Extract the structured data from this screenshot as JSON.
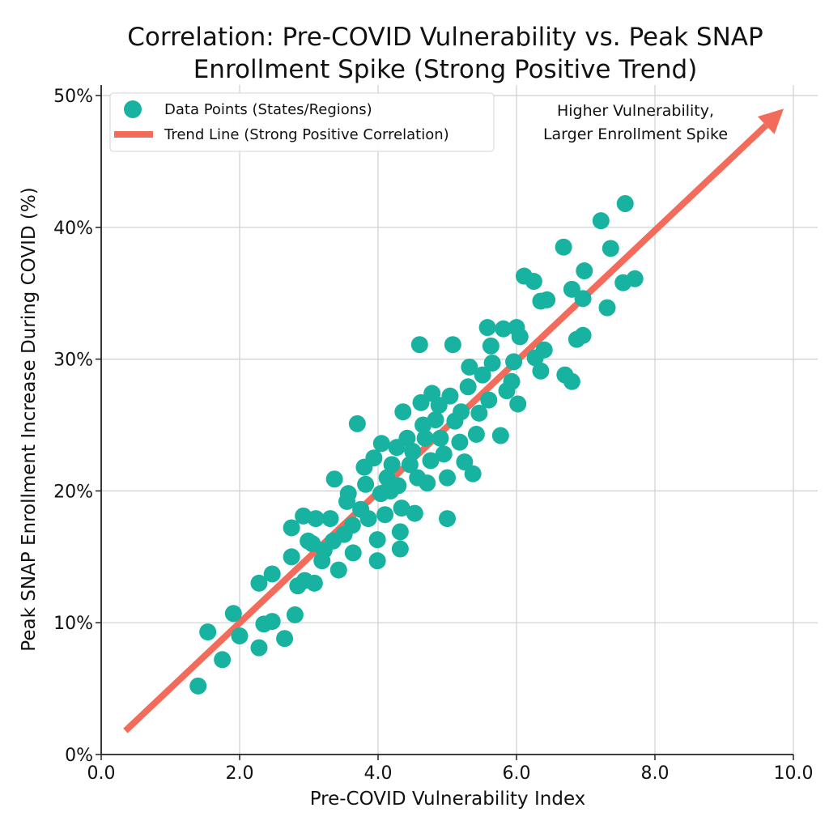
{
  "chart_data": {
    "type": "scatter",
    "title": "Correlation: Pre-COVID Vulnerability vs. Peak SNAP Enrollment Spike (Strong Positive Trend)",
    "title_lines": [
      "Correlation: Pre-COVID Vulnerability vs. Peak SNAP",
      "Enrollment Spike (Strong Positive Trend)"
    ],
    "xlabel": "Pre-COVID Vulnerability Index",
    "ylabel": "Peak SNAP Enrollment Increase During COVID (%)",
    "xlim": [
      0,
      10
    ],
    "ylim": [
      0,
      50
    ],
    "xticks": [
      0,
      2,
      4,
      6,
      8,
      10
    ],
    "xtick_labels": [
      "0.0",
      "2.0",
      "4.0",
      "6.0",
      "8.0",
      "10.0"
    ],
    "yticks": [
      0,
      10,
      20,
      30,
      40,
      50
    ],
    "ytick_labels": [
      "0%",
      "10%",
      "20%",
      "30%",
      "40%",
      "50%"
    ],
    "grid": true,
    "legend_position": "top-left",
    "legend": [
      {
        "label": "Data Points (States/Regions)",
        "kind": "marker",
        "color": "#17b3a0"
      },
      {
        "label": "Trend Line (Strong Positive Correlation)",
        "kind": "line",
        "color": "#f26b5b"
      }
    ],
    "annotation_lines": [
      "Higher Vulnerability,",
      "Larger Enrollment Spike"
    ],
    "series": [
      {
        "name": "Data Points (States/Regions)",
        "color": "#17b3a0",
        "points": [
          [
            1.4,
            5.2
          ],
          [
            1.54,
            9.3
          ],
          [
            1.75,
            7.2
          ],
          [
            1.91,
            10.7
          ],
          [
            2.0,
            9.0
          ],
          [
            2.28,
            8.1
          ],
          [
            2.35,
            9.9
          ],
          [
            2.47,
            10.1
          ],
          [
            2.28,
            13.0
          ],
          [
            2.47,
            13.7
          ],
          [
            2.65,
            8.8
          ],
          [
            2.8,
            10.6
          ],
          [
            2.75,
            17.2
          ],
          [
            2.75,
            15.0
          ],
          [
            2.84,
            12.8
          ],
          [
            2.92,
            18.1
          ],
          [
            2.99,
            16.2
          ],
          [
            2.94,
            13.2
          ],
          [
            3.1,
            17.9
          ],
          [
            3.08,
            13.0
          ],
          [
            3.19,
            14.7
          ],
          [
            3.31,
            17.9
          ],
          [
            3.37,
            20.9
          ],
          [
            3.43,
            14.0
          ],
          [
            3.22,
            15.5
          ],
          [
            3.51,
            16.7
          ],
          [
            3.57,
            19.8
          ],
          [
            3.63,
            17.4
          ],
          [
            3.64,
            15.3
          ],
          [
            3.7,
            25.1
          ],
          [
            3.8,
            21.8
          ],
          [
            3.82,
            20.5
          ],
          [
            3.86,
            17.9
          ],
          [
            3.94,
            22.5
          ],
          [
            3.99,
            14.7
          ],
          [
            3.99,
            16.3
          ],
          [
            4.05,
            23.6
          ],
          [
            4.04,
            19.8
          ],
          [
            4.13,
            21.0
          ],
          [
            4.2,
            22.0
          ],
          [
            4.27,
            23.3
          ],
          [
            4.29,
            20.4
          ],
          [
            4.32,
            16.9
          ],
          [
            4.32,
            15.6
          ],
          [
            4.34,
            18.7
          ],
          [
            4.36,
            26.0
          ],
          [
            4.42,
            24.0
          ],
          [
            4.46,
            22.0
          ],
          [
            4.53,
            18.3
          ],
          [
            4.57,
            21.0
          ],
          [
            4.6,
            31.1
          ],
          [
            4.62,
            26.7
          ],
          [
            4.68,
            24.0
          ],
          [
            4.71,
            20.6
          ],
          [
            4.76,
            22.3
          ],
          [
            4.78,
            27.4
          ],
          [
            4.83,
            25.4
          ],
          [
            4.88,
            26.5
          ],
          [
            4.95,
            22.8
          ],
          [
            5.0,
            17.9
          ],
          [
            5.0,
            21.0
          ],
          [
            5.04,
            27.2
          ],
          [
            5.08,
            31.1
          ],
          [
            5.11,
            25.3
          ],
          [
            5.18,
            23.7
          ],
          [
            5.25,
            22.2
          ],
          [
            5.3,
            27.9
          ],
          [
            5.32,
            29.4
          ],
          [
            5.37,
            21.3
          ],
          [
            5.42,
            24.3
          ],
          [
            5.46,
            25.9
          ],
          [
            5.51,
            28.8
          ],
          [
            5.58,
            32.4
          ],
          [
            5.63,
            31.0
          ],
          [
            5.6,
            26.9
          ],
          [
            5.65,
            29.7
          ],
          [
            5.77,
            24.2
          ],
          [
            5.81,
            32.3
          ],
          [
            5.86,
            27.6
          ],
          [
            5.93,
            28.3
          ],
          [
            6.0,
            32.4
          ],
          [
            6.05,
            31.7
          ],
          [
            6.02,
            26.6
          ],
          [
            5.96,
            29.8
          ],
          [
            6.11,
            36.3
          ],
          [
            6.25,
            35.9
          ],
          [
            6.27,
            30.1
          ],
          [
            6.35,
            29.1
          ],
          [
            6.35,
            34.4
          ],
          [
            6.44,
            34.5
          ],
          [
            6.4,
            30.7
          ],
          [
            6.68,
            38.5
          ],
          [
            6.7,
            28.8
          ],
          [
            6.8,
            28.3
          ],
          [
            6.8,
            35.3
          ],
          [
            6.87,
            31.5
          ],
          [
            6.96,
            31.8
          ],
          [
            6.96,
            34.6
          ],
          [
            6.98,
            36.7
          ],
          [
            7.22,
            40.5
          ],
          [
            7.31,
            33.9
          ],
          [
            7.36,
            38.4
          ],
          [
            7.54,
            35.8
          ],
          [
            7.57,
            41.8
          ],
          [
            7.71,
            36.1
          ],
          [
            3.55,
            19.2
          ],
          [
            3.75,
            18.6
          ],
          [
            4.1,
            18.2
          ],
          [
            4.18,
            20.0
          ],
          [
            4.5,
            23.0
          ],
          [
            4.65,
            25.0
          ],
          [
            4.9,
            24.0
          ],
          [
            5.2,
            26.0
          ],
          [
            3.05,
            16.0
          ],
          [
            3.35,
            16.2
          ]
        ]
      },
      {
        "name": "Trend Line (Strong Positive Correlation)",
        "color": "#f26b5b",
        "line": [
          [
            0.35,
            1.8
          ],
          [
            9.86,
            49.0
          ]
        ]
      }
    ]
  }
}
